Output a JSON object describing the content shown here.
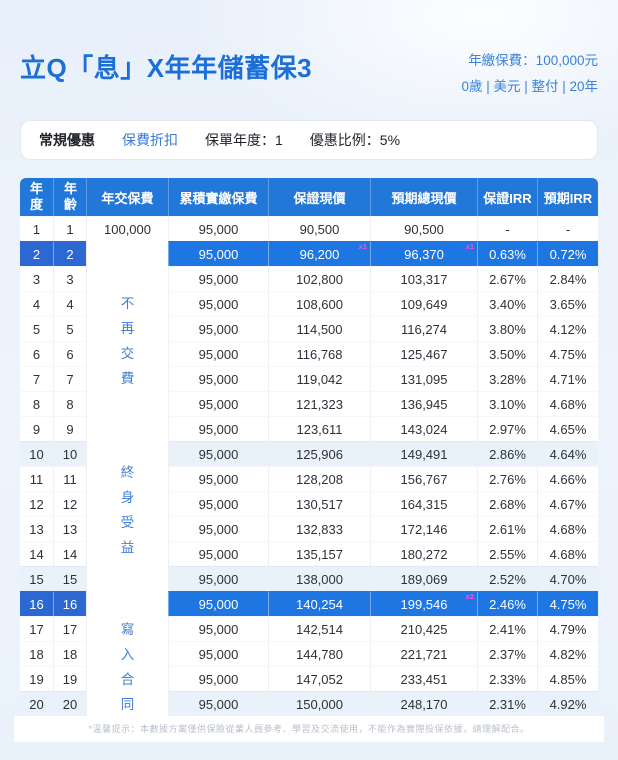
{
  "header": {
    "title": "立Q「息」X年年儲蓄保3",
    "premium_line": "年繳保費：100,000元",
    "profile_line": "0歲 | 美元 | 整付 | 20年"
  },
  "promo_bar": {
    "label": "常規優惠",
    "type": "保費折扣",
    "policy_year": "保單年度：1",
    "discount_ratio": "優惠比例：5%"
  },
  "table": {
    "columns": [
      "年度",
      "年齡",
      "年交保費",
      "累積實繳保費",
      "保證現價",
      "預期總現價",
      "保證IRR",
      "預期IRR"
    ],
    "premium_notes": [
      "不再交費",
      "終身受益",
      "寫入合同"
    ],
    "rows": [
      {
        "year": "1",
        "age": "1",
        "annual_premium": "100,000",
        "cumulative": "95,000",
        "guaranteed": "90,500",
        "expected": "90,500",
        "g_irr": "-",
        "e_irr": "-"
      },
      {
        "year": "2",
        "age": "2",
        "cumulative": "95,000",
        "guaranteed": "96,200",
        "expected": "96,370",
        "g_irr": "0.63%",
        "e_irr": "0.72%",
        "highlight": true,
        "badge_g": "x1",
        "badge_e": "x1"
      },
      {
        "year": "3",
        "age": "3",
        "cumulative": "95,000",
        "guaranteed": "102,800",
        "expected": "103,317",
        "g_irr": "2.67%",
        "e_irr": "2.84%"
      },
      {
        "year": "4",
        "age": "4",
        "cumulative": "95,000",
        "guaranteed": "108,600",
        "expected": "109,649",
        "g_irr": "3.40%",
        "e_irr": "3.65%"
      },
      {
        "year": "5",
        "age": "5",
        "cumulative": "95,000",
        "guaranteed": "114,500",
        "expected": "116,274",
        "g_irr": "3.80%",
        "e_irr": "4.12%"
      },
      {
        "year": "6",
        "age": "6",
        "cumulative": "95,000",
        "guaranteed": "116,768",
        "expected": "125,467",
        "g_irr": "3.50%",
        "e_irr": "4.75%"
      },
      {
        "year": "7",
        "age": "7",
        "cumulative": "95,000",
        "guaranteed": "119,042",
        "expected": "131,095",
        "g_irr": "3.28%",
        "e_irr": "4.71%"
      },
      {
        "year": "8",
        "age": "8",
        "cumulative": "95,000",
        "guaranteed": "121,323",
        "expected": "136,945",
        "g_irr": "3.10%",
        "e_irr": "4.68%"
      },
      {
        "year": "9",
        "age": "9",
        "cumulative": "95,000",
        "guaranteed": "123,611",
        "expected": "143,024",
        "g_irr": "2.97%",
        "e_irr": "4.65%"
      },
      {
        "year": "10",
        "age": "10",
        "cumulative": "95,000",
        "guaranteed": "125,906",
        "expected": "149,491",
        "g_irr": "2.86%",
        "e_irr": "4.64%",
        "tint": true
      },
      {
        "year": "11",
        "age": "11",
        "cumulative": "95,000",
        "guaranteed": "128,208",
        "expected": "156,767",
        "g_irr": "2.76%",
        "e_irr": "4.66%"
      },
      {
        "year": "12",
        "age": "12",
        "cumulative": "95,000",
        "guaranteed": "130,517",
        "expected": "164,315",
        "g_irr": "2.68%",
        "e_irr": "4.67%"
      },
      {
        "year": "13",
        "age": "13",
        "cumulative": "95,000",
        "guaranteed": "132,833",
        "expected": "172,146",
        "g_irr": "2.61%",
        "e_irr": "4.68%"
      },
      {
        "year": "14",
        "age": "14",
        "cumulative": "95,000",
        "guaranteed": "135,157",
        "expected": "180,272",
        "g_irr": "2.55%",
        "e_irr": "4.68%"
      },
      {
        "year": "15",
        "age": "15",
        "cumulative": "95,000",
        "guaranteed": "138,000",
        "expected": "189,069",
        "g_irr": "2.52%",
        "e_irr": "4.70%",
        "tint": true
      },
      {
        "year": "16",
        "age": "16",
        "cumulative": "95,000",
        "guaranteed": "140,254",
        "expected": "199,546",
        "g_irr": "2.46%",
        "e_irr": "4.75%",
        "highlight": true,
        "badge_e": "x2"
      },
      {
        "year": "17",
        "age": "17",
        "cumulative": "95,000",
        "guaranteed": "142,514",
        "expected": "210,425",
        "g_irr": "2.41%",
        "e_irr": "4.79%"
      },
      {
        "year": "18",
        "age": "18",
        "cumulative": "95,000",
        "guaranteed": "144,780",
        "expected": "221,721",
        "g_irr": "2.37%",
        "e_irr": "4.82%"
      },
      {
        "year": "19",
        "age": "19",
        "cumulative": "95,000",
        "guaranteed": "147,052",
        "expected": "233,451",
        "g_irr": "2.33%",
        "e_irr": "4.85%"
      },
      {
        "year": "20",
        "age": "20",
        "cumulative": "95,000",
        "guaranteed": "150,000",
        "expected": "248,170",
        "g_irr": "2.31%",
        "e_irr": "4.92%",
        "tint": true
      }
    ]
  },
  "footer": {
    "disclaimer": "*溫馨提示：本數據方案僅供保險從業人員參考、學習及交流使用，不能作為實際投保依據，請理解配合。"
  },
  "colors": {
    "title_blue": "#1b6fd6",
    "header_blue": "#2278d9",
    "highlight_blue": "#1e76e3",
    "highlight_dark_blue": "#2c68d2",
    "tint_blue": "#e9f1fb",
    "note_blue": "#3f7fd6",
    "badge_magenta": "#ff4fd8"
  }
}
